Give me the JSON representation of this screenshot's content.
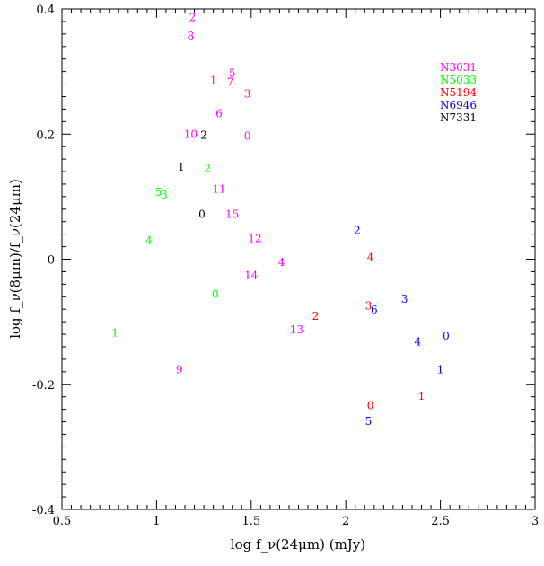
{
  "chart_data": {
    "type": "scatter",
    "xlabel": "log f_ν(24μm) (mJy)",
    "ylabel": "log f_ν(8μm)/f_ν(24μm)",
    "xlim": [
      0.5,
      3.0
    ],
    "ylim": [
      -0.4,
      0.4
    ],
    "xticks": [
      "0.5",
      "1",
      "1.5",
      "2",
      "2.5",
      "3"
    ],
    "yticks": [
      "-0.4",
      "-0.2",
      "0",
      "0.2",
      "0.4"
    ],
    "legend_position": "top-right",
    "grid": false,
    "series": [
      {
        "name": "N3031",
        "color": "#ff00ff",
        "points": [
          {
            "label": "2",
            "x": 1.19,
            "y": 0.386
          },
          {
            "label": "8",
            "x": 1.18,
            "y": 0.357
          },
          {
            "label": "1",
            "x": 1.3,
            "y": 0.286
          },
          {
            "label": "5",
            "x": 1.4,
            "y": 0.297
          },
          {
            "label": "7",
            "x": 1.39,
            "y": 0.283
          },
          {
            "label": "3",
            "x": 1.48,
            "y": 0.264
          },
          {
            "label": "6",
            "x": 1.33,
            "y": 0.233
          },
          {
            "label": "10",
            "x": 1.18,
            "y": 0.2
          },
          {
            "label": "0",
            "x": 1.48,
            "y": 0.197
          },
          {
            "label": "11",
            "x": 1.33,
            "y": 0.112
          },
          {
            "label": "15",
            "x": 1.4,
            "y": 0.072
          },
          {
            "label": "12",
            "x": 1.52,
            "y": 0.033
          },
          {
            "label": "4",
            "x": 1.66,
            "y": -0.005
          },
          {
            "label": "14",
            "x": 1.5,
            "y": -0.026
          },
          {
            "label": "13",
            "x": 1.74,
            "y": -0.113
          },
          {
            "label": "9",
            "x": 1.12,
            "y": -0.177
          }
        ]
      },
      {
        "name": "N5033",
        "color": "#00ff00",
        "points": [
          {
            "label": "2",
            "x": 1.27,
            "y": 0.145
          },
          {
            "label": "5",
            "x": 1.01,
            "y": 0.107
          },
          {
            "label": "3",
            "x": 1.04,
            "y": 0.103
          },
          {
            "label": "4",
            "x": 0.96,
            "y": 0.03
          },
          {
            "label": "0",
            "x": 1.31,
            "y": -0.056
          },
          {
            "label": "1",
            "x": 0.78,
            "y": -0.118
          }
        ]
      },
      {
        "name": "N5194",
        "color": "#ff0000",
        "points": [
          {
            "label": "4",
            "x": 2.13,
            "y": 0.003
          },
          {
            "label": "3",
            "x": 2.12,
            "y": -0.075
          },
          {
            "label": "2",
            "x": 1.84,
            "y": -0.091
          },
          {
            "label": "1",
            "x": 2.4,
            "y": -0.219
          },
          {
            "label": "0",
            "x": 2.13,
            "y": -0.234
          }
        ]
      },
      {
        "name": "N6946",
        "color": "#0000ff",
        "points": [
          {
            "label": "2",
            "x": 2.06,
            "y": 0.046
          },
          {
            "label": "3",
            "x": 2.31,
            "y": -0.064
          },
          {
            "label": "6",
            "x": 2.15,
            "y": -0.081
          },
          {
            "label": "0",
            "x": 2.53,
            "y": -0.123
          },
          {
            "label": "4",
            "x": 2.38,
            "y": -0.132
          },
          {
            "label": "1",
            "x": 2.5,
            "y": -0.177
          },
          {
            "label": "5",
            "x": 2.12,
            "y": -0.259
          }
        ]
      },
      {
        "name": "N7331",
        "color": "#000000",
        "points": [
          {
            "label": "2",
            "x": 1.25,
            "y": 0.198
          },
          {
            "label": "1",
            "x": 1.13,
            "y": 0.147
          },
          {
            "label": "0",
            "x": 1.24,
            "y": 0.072
          }
        ]
      }
    ]
  }
}
